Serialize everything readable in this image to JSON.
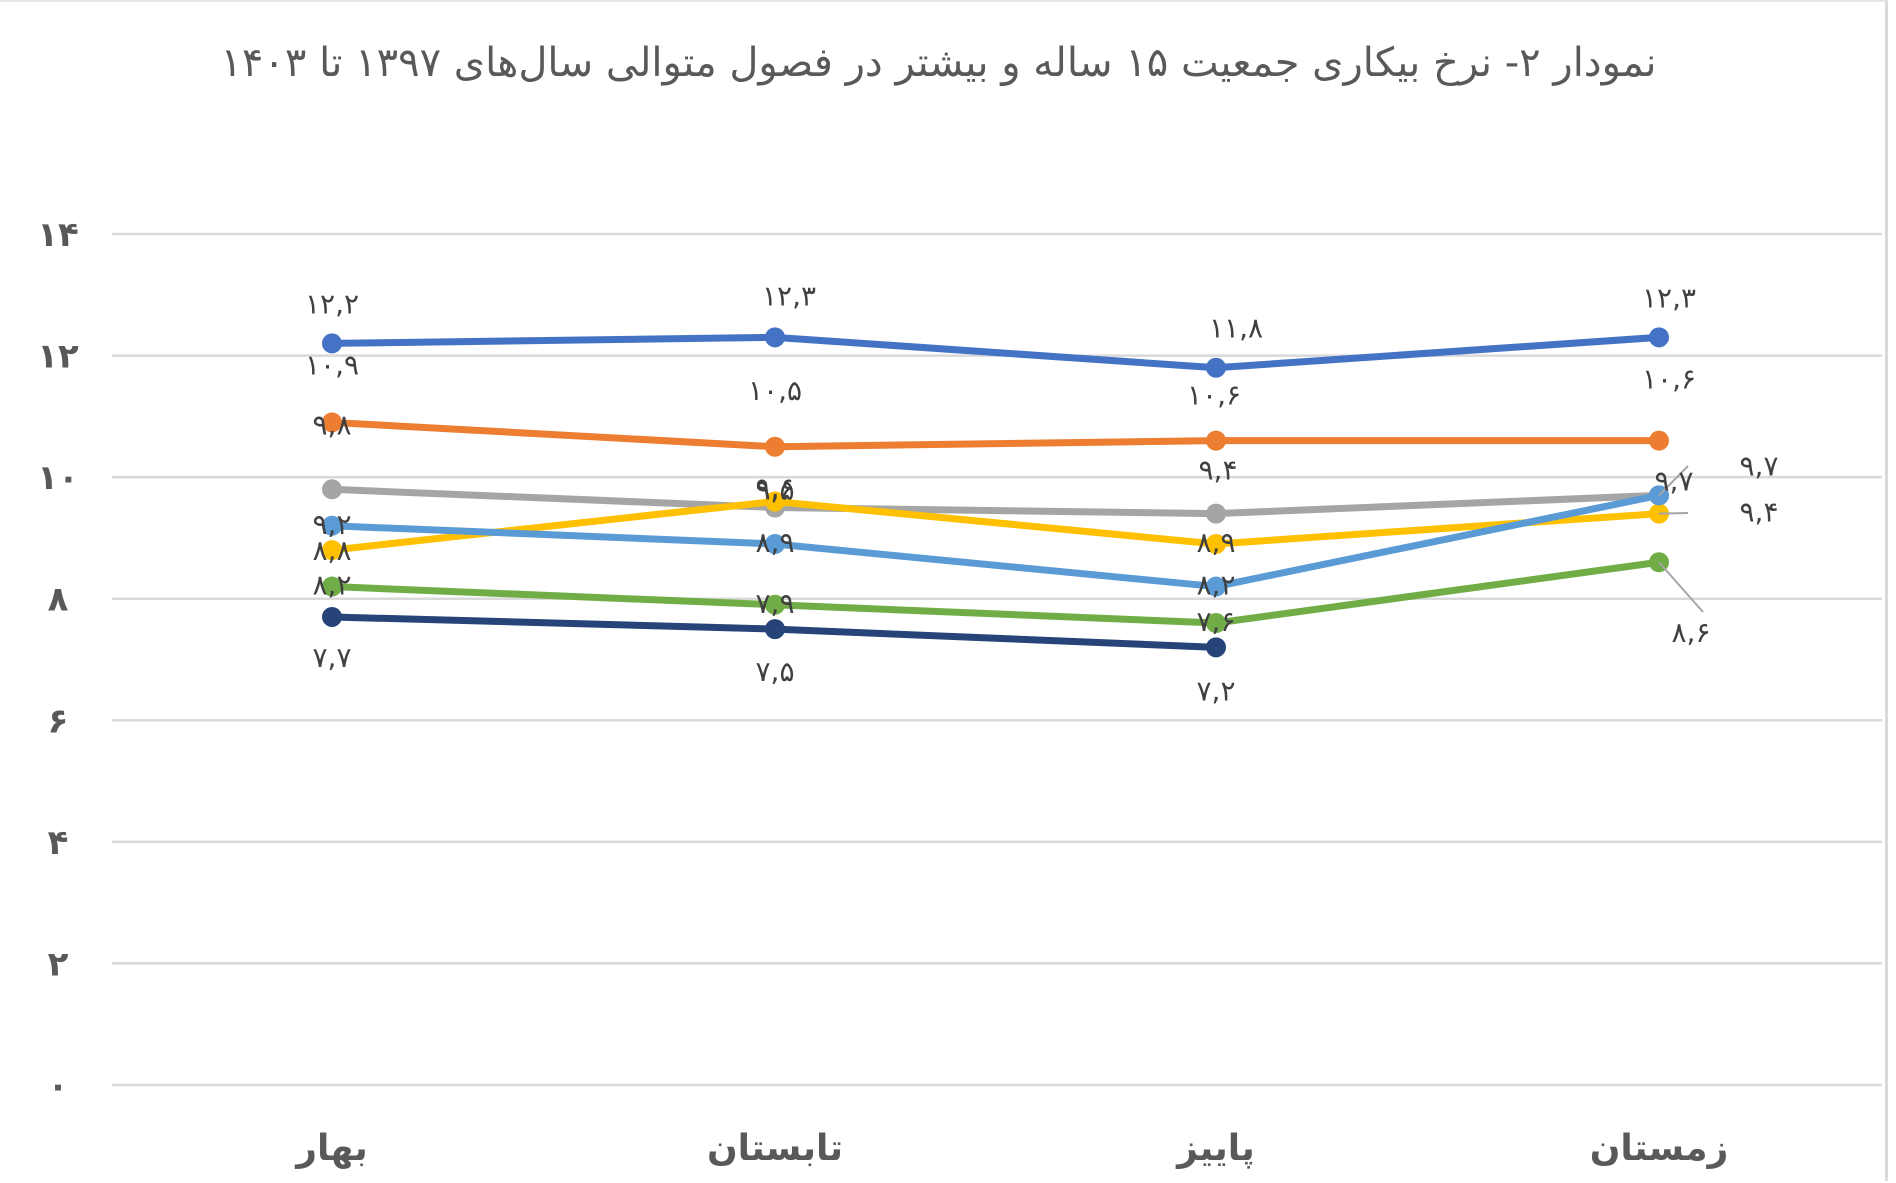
{
  "chart_data": {
    "type": "line",
    "title": "نمودار ۲-  نرخ بیکاری جمعیت ۱۵ ساله و بیشتر در فصول متوالی سال‌های ۱۳۹۷ تا ۱۴۰۳",
    "categories": [
      "بهار",
      "تابستان",
      "پاییز",
      "زمستان"
    ],
    "ylim": [
      0,
      14
    ],
    "yticks": [
      0,
      2,
      4,
      6,
      8,
      10,
      12,
      14
    ],
    "ytick_labels": [
      "۰",
      "۲",
      "۴",
      "۶",
      "۸",
      "۱۰",
      "۱۲",
      "۱۴"
    ],
    "grid": true,
    "legend": "none",
    "series": [
      {
        "color": "#4472C4",
        "values": [
          12.2,
          12.3,
          11.8,
          12.3
        ],
        "labels": [
          "۱۲,۲",
          "۱۲,۳",
          "۱۱,۸",
          "۱۲,۳"
        ]
      },
      {
        "color": "#ED7D31",
        "values": [
          10.9,
          10.5,
          10.6,
          10.6
        ],
        "labels": [
          "۱۰,۹",
          "۱۰,۵",
          "۱۰,۶",
          "۱۰,۶"
        ]
      },
      {
        "color": "#A5A5A5",
        "values": [
          9.8,
          9.5,
          9.4,
          9.7
        ],
        "labels": [
          "۹,۸",
          "۹,۵",
          "۹,۴",
          "۹,۷"
        ]
      },
      {
        "color": "#FFC000",
        "values": [
          8.8,
          9.6,
          8.9,
          9.4
        ],
        "labels": [
          "۸,۸",
          "۹,۶",
          "۸,۹",
          "۹,۴"
        ]
      },
      {
        "color": "#5B9BD5",
        "values": [
          9.2,
          8.9,
          8.2,
          9.7
        ],
        "labels": [
          "۹,۲",
          "۸,۹",
          "۸,۲",
          "۹,۷"
        ]
      },
      {
        "color": "#70AD47",
        "values": [
          8.2,
          7.9,
          7.6,
          8.6
        ],
        "labels": [
          "۸,۲",
          "۷,۹",
          "۷,۶",
          "۸,۶"
        ]
      },
      {
        "color": "#264478",
        "values": [
          7.7,
          7.5,
          7.2,
          null
        ],
        "labels": [
          "۷,۷",
          "۷,۵",
          "۷,۲",
          ""
        ]
      }
    ]
  }
}
